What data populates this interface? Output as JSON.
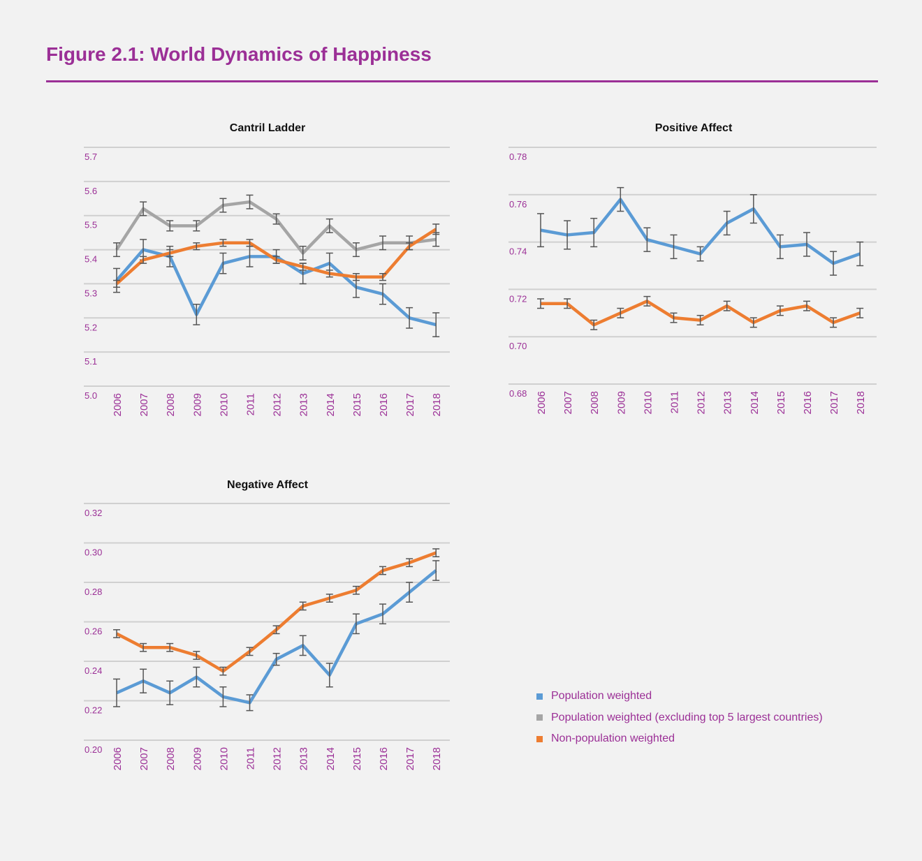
{
  "figure": {
    "title": "Figure 2.1: World Dynamics of Happiness",
    "title_color": "#9b2f96"
  },
  "legend": [
    {
      "label": "Population weighted",
      "color": "#5b9bd5"
    },
    {
      "label": "Population weighted (excluding top 5 largest countries)",
      "color": "#a5a5a5"
    },
    {
      "label": "Non-population weighted",
      "color": "#ed7d31"
    }
  ],
  "chart_data": [
    {
      "type": "line",
      "title": "Cantril Ladder",
      "categories": [
        "2006",
        "2007",
        "2008",
        "2009",
        "2010",
        "2011",
        "2012",
        "2013",
        "2014",
        "2015",
        "2016",
        "2017",
        "2018"
      ],
      "ylim": [
        5.0,
        5.7
      ],
      "yticks": [
        "5.0",
        "5.1",
        "5.2",
        "5.3",
        "5.4",
        "5.5",
        "5.6",
        "5.7"
      ],
      "grid": true,
      "error_bars": true,
      "series": [
        {
          "name": "Population weighted (excluding top 5 largest countries)",
          "color": "#a5a5a5",
          "values": [
            5.4,
            5.52,
            5.47,
            5.47,
            5.53,
            5.54,
            5.49,
            5.39,
            5.47,
            5.4,
            5.42,
            5.42,
            5.43
          ],
          "errors": [
            0.02,
            0.02,
            0.015,
            0.015,
            0.02,
            0.02,
            0.015,
            0.02,
            0.02,
            0.02,
            0.02,
            0.02,
            0.02
          ]
        },
        {
          "name": "Population weighted",
          "color": "#5b9bd5",
          "values": [
            5.31,
            5.4,
            5.38,
            5.21,
            5.36,
            5.38,
            5.38,
            5.33,
            5.36,
            5.29,
            5.27,
            5.2,
            5.18
          ],
          "errors": [
            0.035,
            0.03,
            0.03,
            0.03,
            0.03,
            0.03,
            0.02,
            0.03,
            0.03,
            0.03,
            0.03,
            0.03,
            0.035
          ]
        },
        {
          "name": "Non-population weighted",
          "color": "#ed7d31",
          "values": [
            5.3,
            5.37,
            5.39,
            5.41,
            5.42,
            5.42,
            5.37,
            5.35,
            5.33,
            5.32,
            5.32,
            5.41,
            5.46
          ],
          "errors": [
            0.01,
            0.01,
            0.01,
            0.01,
            0.01,
            0.01,
            0.01,
            0.01,
            0.01,
            0.01,
            0.01,
            0.01,
            0.015
          ]
        }
      ]
    },
    {
      "type": "line",
      "title": "Positive Affect",
      "categories": [
        "2006",
        "2007",
        "2008",
        "2009",
        "2010",
        "2011",
        "2012",
        "2013",
        "2014",
        "2015",
        "2016",
        "2017",
        "2018"
      ],
      "ylim": [
        0.68,
        0.78
      ],
      "yticks": [
        "0.68",
        "0.70",
        "0.72",
        "0.74",
        "0.76",
        "0.78"
      ],
      "grid": true,
      "error_bars": true,
      "series": [
        {
          "name": "Population weighted",
          "color": "#5b9bd5",
          "values": [
            0.745,
            0.743,
            0.744,
            0.758,
            0.741,
            0.738,
            0.735,
            0.748,
            0.754,
            0.738,
            0.739,
            0.731,
            0.735
          ],
          "errors": [
            0.007,
            0.006,
            0.006,
            0.005,
            0.005,
            0.005,
            0.003,
            0.005,
            0.006,
            0.005,
            0.005,
            0.005,
            0.005
          ]
        },
        {
          "name": "Non-population weighted",
          "color": "#ed7d31",
          "values": [
            0.714,
            0.714,
            0.705,
            0.71,
            0.715,
            0.708,
            0.707,
            0.713,
            0.706,
            0.711,
            0.713,
            0.706,
            0.71
          ],
          "errors": [
            0.002,
            0.002,
            0.002,
            0.002,
            0.002,
            0.002,
            0.002,
            0.002,
            0.002,
            0.002,
            0.002,
            0.002,
            0.002
          ]
        }
      ]
    },
    {
      "type": "line",
      "title": "Negative Affect",
      "categories": [
        "2006",
        "2007",
        "2008",
        "2009",
        "2010",
        "2011",
        "2012",
        "2013",
        "2014",
        "2015",
        "2016",
        "2017",
        "2018"
      ],
      "ylim": [
        0.2,
        0.32
      ],
      "yticks": [
        "0.20",
        "0.22",
        "0.24",
        "0.26",
        "0.28",
        "0.30",
        "0.32"
      ],
      "grid": true,
      "error_bars": true,
      "series": [
        {
          "name": "Population weighted",
          "color": "#5b9bd5",
          "values": [
            0.224,
            0.23,
            0.224,
            0.232,
            0.222,
            0.219,
            0.241,
            0.248,
            0.233,
            0.259,
            0.264,
            0.275,
            0.286
          ],
          "errors": [
            0.007,
            0.006,
            0.006,
            0.005,
            0.005,
            0.004,
            0.003,
            0.005,
            0.006,
            0.005,
            0.005,
            0.005,
            0.005
          ]
        },
        {
          "name": "Non-population weighted",
          "color": "#ed7d31",
          "values": [
            0.254,
            0.247,
            0.247,
            0.243,
            0.235,
            0.245,
            0.256,
            0.268,
            0.272,
            0.276,
            0.286,
            0.29,
            0.295
          ],
          "errors": [
            0.002,
            0.002,
            0.002,
            0.002,
            0.002,
            0.002,
            0.002,
            0.002,
            0.002,
            0.002,
            0.002,
            0.002,
            0.002
          ]
        }
      ]
    }
  ]
}
